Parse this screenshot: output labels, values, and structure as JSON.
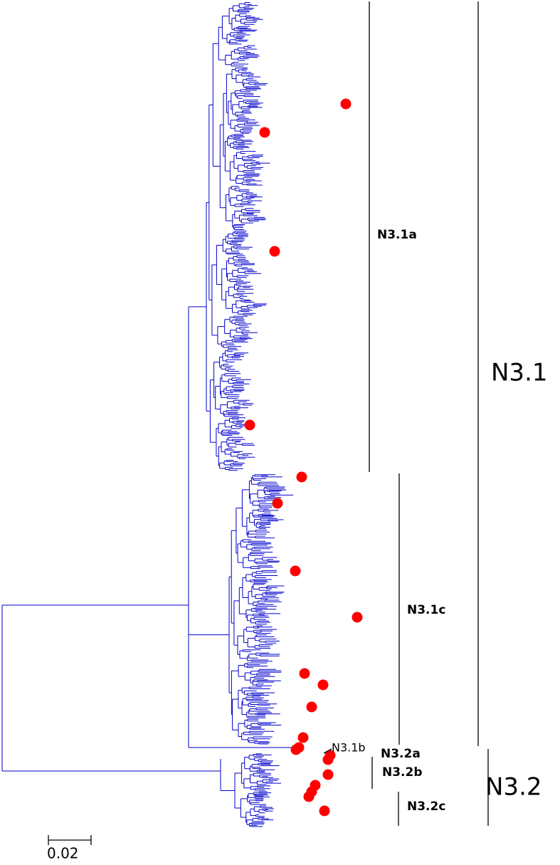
{
  "clades": [
    {
      "label": "N3.1a"
    },
    {
      "label": "N3.1c"
    },
    {
      "label": "N3.1b"
    },
    {
      "label": "N3.2a"
    },
    {
      "label": "N3.2b"
    },
    {
      "label": "N3.2c"
    },
    {
      "label": "N3.1"
    },
    {
      "label": "N3.2"
    }
  ],
  "scale_bar": {
    "label": "0.02"
  }
}
